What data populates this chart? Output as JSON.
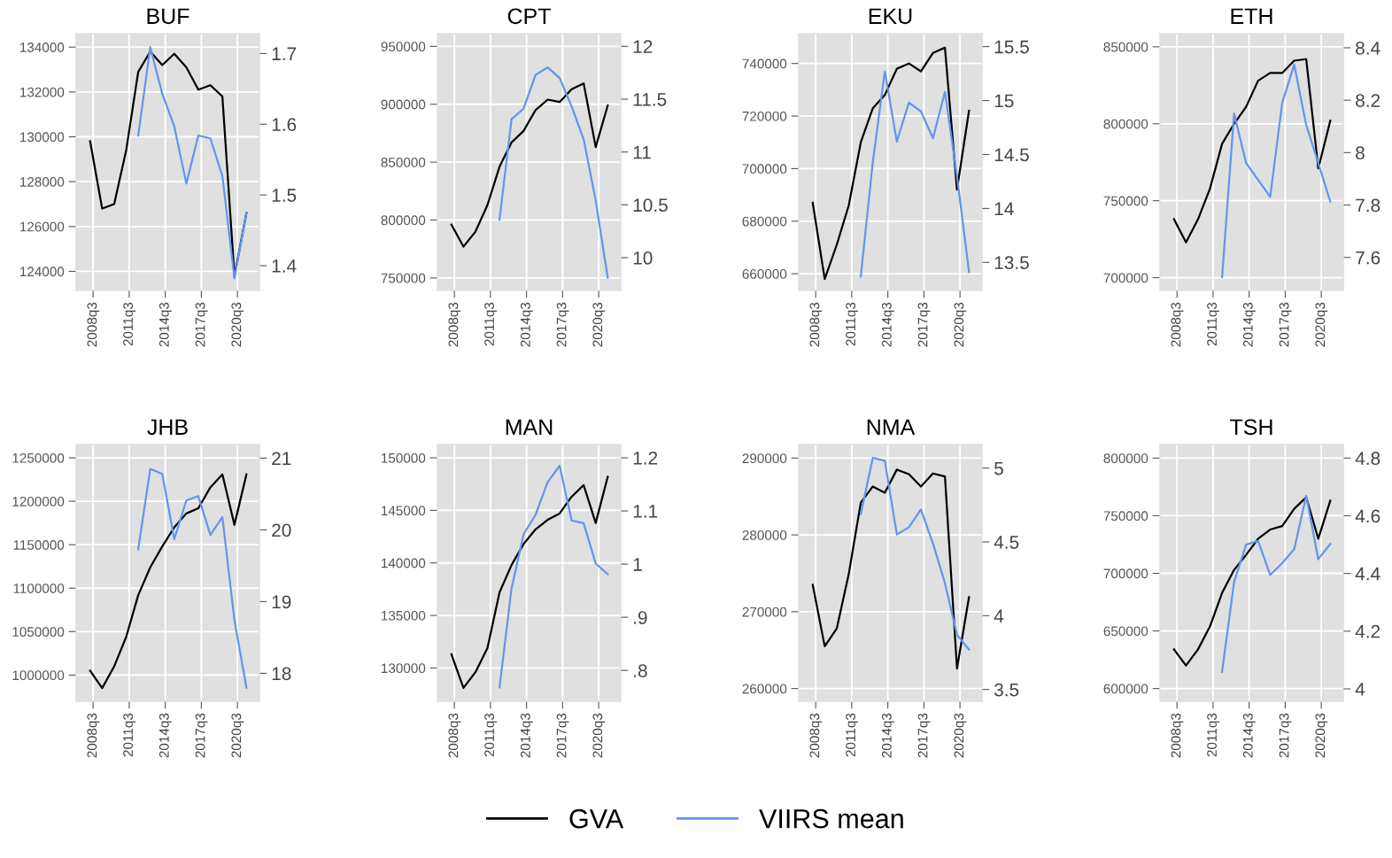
{
  "chart_data": [
    {
      "type": "line",
      "title": "BUF",
      "xlim": [
        "2007-02-01",
        "2022-05-01"
      ],
      "xticks": [
        {
          "value": "2008-07-01",
          "label": "2008q3"
        },
        {
          "value": "2011-07-01",
          "label": "2011q3"
        },
        {
          "value": "2014-07-01",
          "label": "2014q3"
        },
        {
          "value": "2017-07-01",
          "label": "2017q3"
        },
        {
          "value": "2020-07-01",
          "label": "2020q3"
        }
      ],
      "ylim": [
        123150,
        134600
      ],
      "yticks": [
        124000,
        126000,
        128000,
        130000,
        132000,
        134000
      ],
      "y2lim": [
        1.365,
        1.728
      ],
      "y2ticks": [
        1.4,
        1.5,
        1.6,
        1.7
      ],
      "grid": true,
      "legend": "bottom",
      "series": [
        {
          "name": "GVA",
          "color": "#000000",
          "x": [
            "2008-04-01",
            "2009-04-01",
            "2010-04-01",
            "2011-04-01",
            "2012-04-01",
            "2013-04-01",
            "2014-04-01",
            "2015-04-01",
            "2016-04-01",
            "2017-04-01",
            "2018-04-01",
            "2019-04-01",
            "2020-04-01",
            "2021-04-01"
          ],
          "values": [
            129800,
            126800,
            127000,
            129400,
            132900,
            133800,
            133200,
            133700,
            133100,
            132100,
            132300,
            131800,
            123800,
            126600
          ]
        },
        {
          "name": "VIIRS mean",
          "color": "#6495ed",
          "axis": "y2",
          "x": [
            "2012-04-01",
            "2013-04-01",
            "2014-04-01",
            "2015-04-01",
            "2016-04-01",
            "2017-04-01",
            "2018-04-01",
            "2019-04-01",
            "2020-04-01",
            "2021-04-01"
          ],
          "values": [
            1.584,
            1.709,
            1.643,
            1.597,
            1.516,
            1.584,
            1.58,
            1.527,
            1.382,
            1.475
          ]
        }
      ]
    },
    {
      "type": "line",
      "title": "CPT",
      "xlim": [
        "2007-02-01",
        "2022-05-01"
      ],
      "xticks": [
        {
          "value": "2008-07-01",
          "label": "2008q3"
        },
        {
          "value": "2011-07-01",
          "label": "2011q3"
        },
        {
          "value": "2014-07-01",
          "label": "2014q3"
        },
        {
          "value": "2017-07-01",
          "label": "2017q3"
        },
        {
          "value": "2020-07-01",
          "label": "2020q3"
        }
      ],
      "ylim": [
        739200,
        961000
      ],
      "yticks": [
        750000,
        800000,
        850000,
        900000,
        950000
      ],
      "y2lim": [
        9.69,
        12.12
      ],
      "y2ticks": [
        10,
        10.5,
        11,
        11.5,
        12
      ],
      "grid": true,
      "series": [
        {
          "color": "#000000",
          "x": [
            "2008-04-01",
            "2009-04-01",
            "2010-04-01",
            "2011-04-01",
            "2012-04-01",
            "2013-04-01",
            "2014-04-01",
            "2015-04-01",
            "2016-04-01",
            "2017-04-01",
            "2018-04-01",
            "2019-04-01",
            "2020-04-01",
            "2021-04-01"
          ],
          "values": [
            796000,
            777000,
            790000,
            813000,
            846000,
            867000,
            877000,
            895000,
            904000,
            902000,
            913000,
            918000,
            863000,
            899000
          ]
        },
        {
          "color": "#6495ed",
          "axis": "y2",
          "x": [
            "2012-04-01",
            "2013-04-01",
            "2014-04-01",
            "2015-04-01",
            "2016-04-01",
            "2017-04-01",
            "2018-04-01",
            "2019-04-01",
            "2020-04-01",
            "2021-04-01"
          ],
          "values": [
            10.36,
            11.31,
            11.41,
            11.73,
            11.8,
            11.7,
            11.43,
            11.12,
            10.54,
            9.81
          ]
        }
      ]
    },
    {
      "type": "line",
      "title": "EKU",
      "xlim": [
        "2007-02-01",
        "2022-05-01"
      ],
      "xticks": [
        {
          "value": "2008-07-01",
          "label": "2008q3"
        },
        {
          "value": "2011-07-01",
          "label": "2011q3"
        },
        {
          "value": "2014-07-01",
          "label": "2014q3"
        },
        {
          "value": "2017-07-01",
          "label": "2017q3"
        },
        {
          "value": "2020-07-01",
          "label": "2020q3"
        }
      ],
      "ylim": [
        653650,
        751350
      ],
      "yticks": [
        660000,
        680000,
        700000,
        720000,
        740000
      ],
      "y2lim": [
        13.24,
        15.62
      ],
      "y2ticks": [
        13.5,
        14,
        14.5,
        15,
        15.5
      ],
      "grid": true,
      "series": [
        {
          "color": "#000000",
          "x": [
            "2008-04-01",
            "2009-04-01",
            "2010-04-01",
            "2011-04-01",
            "2012-04-01",
            "2013-04-01",
            "2014-04-01",
            "2015-04-01",
            "2016-04-01",
            "2017-04-01",
            "2018-04-01",
            "2019-04-01",
            "2020-04-01",
            "2021-04-01"
          ],
          "values": [
            687000,
            658000,
            671000,
            686000,
            710000,
            723000,
            728000,
            738000,
            740000,
            737000,
            744000,
            746000,
            692000,
            722000
          ]
        },
        {
          "color": "#6495ed",
          "axis": "y2",
          "x": [
            "2012-04-01",
            "2013-04-01",
            "2014-04-01",
            "2015-04-01",
            "2016-04-01",
            "2017-04-01",
            "2018-04-01",
            "2019-04-01",
            "2020-04-01",
            "2021-04-01"
          ],
          "values": [
            13.37,
            14.43,
            15.27,
            14.62,
            14.98,
            14.9,
            14.65,
            15.08,
            14.3,
            13.41
          ]
        }
      ]
    },
    {
      "type": "line",
      "title": "ETH",
      "xlim": [
        "2007-02-01",
        "2022-05-01"
      ],
      "xticks": [
        {
          "value": "2008-07-01",
          "label": "2008q3"
        },
        {
          "value": "2011-07-01",
          "label": "2011q3"
        },
        {
          "value": "2014-07-01",
          "label": "2014q3"
        },
        {
          "value": "2017-07-01",
          "label": "2017q3"
        },
        {
          "value": "2020-07-01",
          "label": "2020q3"
        }
      ],
      "ylim": [
        691730,
        858550
      ],
      "yticks": [
        700000,
        750000,
        800000,
        850000
      ],
      "y2lim": [
        7.474,
        8.454
      ],
      "y2ticks": [
        7.6,
        7.8,
        8,
        8.2,
        8.4
      ],
      "grid": true,
      "series": [
        {
          "color": "#000000",
          "x": [
            "2008-04-01",
            "2009-04-01",
            "2010-04-01",
            "2011-04-01",
            "2012-04-01",
            "2013-04-01",
            "2014-04-01",
            "2015-04-01",
            "2016-04-01",
            "2017-04-01",
            "2018-04-01",
            "2019-04-01",
            "2020-04-01",
            "2021-04-01"
          ],
          "values": [
            738000,
            723000,
            738000,
            758000,
            787000,
            800000,
            811000,
            828000,
            833000,
            833000,
            841000,
            842000,
            771000,
            802000
          ]
        },
        {
          "color": "#6495ed",
          "axis": "y2",
          "x": [
            "2012-04-01",
            "2013-04-01",
            "2014-04-01",
            "2015-04-01",
            "2016-04-01",
            "2017-04-01",
            "2018-04-01",
            "2019-04-01",
            "2020-04-01",
            "2021-04-01"
          ],
          "values": [
            7.525,
            8.149,
            7.96,
            7.896,
            7.831,
            8.189,
            8.336,
            8.105,
            7.96,
            7.813
          ]
        }
      ]
    },
    {
      "type": "line",
      "title": "JHB",
      "xlim": [
        "2007-02-01",
        "2022-05-01"
      ],
      "xticks": [
        {
          "value": "2008-07-01",
          "label": "2008q3"
        },
        {
          "value": "2011-07-01",
          "label": "2011q3"
        },
        {
          "value": "2014-07-01",
          "label": "2014q3"
        },
        {
          "value": "2017-07-01",
          "label": "2017q3"
        },
        {
          "value": "2020-07-01",
          "label": "2020q3"
        }
      ],
      "ylim": [
        969840,
        1265340
      ],
      "yticks": [
        1000000,
        1050000,
        1100000,
        1150000,
        1200000,
        1250000
      ],
      "y2lim": [
        17.61,
        21.19
      ],
      "y2ticks": [
        18,
        19,
        20,
        21
      ],
      "grid": true,
      "series": [
        {
          "color": "#000000",
          "x": [
            "2008-04-01",
            "2009-04-01",
            "2010-04-01",
            "2011-04-01",
            "2012-04-01",
            "2013-04-01",
            "2014-04-01",
            "2015-04-01",
            "2016-04-01",
            "2017-04-01",
            "2018-04-01",
            "2019-04-01",
            "2020-04-01",
            "2021-04-01"
          ],
          "values": [
            1005000,
            985000,
            1010000,
            1044000,
            1092000,
            1124000,
            1148000,
            1170000,
            1186000,
            1192000,
            1216000,
            1231000,
            1173000,
            1231000
          ]
        },
        {
          "color": "#6495ed",
          "axis": "y2",
          "x": [
            "2012-04-01",
            "2013-04-01",
            "2014-04-01",
            "2015-04-01",
            "2016-04-01",
            "2017-04-01",
            "2018-04-01",
            "2019-04-01",
            "2020-04-01",
            "2021-04-01"
          ],
          "values": [
            19.73,
            20.85,
            20.78,
            19.87,
            20.41,
            20.47,
            19.93,
            20.18,
            18.74,
            17.8
          ]
        }
      ]
    },
    {
      "type": "line",
      "title": "MAN",
      "xlim": [
        "2007-02-01",
        "2022-05-01"
      ],
      "xticks": [
        {
          "value": "2008-07-01",
          "label": "2008q3"
        },
        {
          "value": "2011-07-01",
          "label": "2011q3"
        },
        {
          "value": "2014-07-01",
          "label": "2014q3"
        },
        {
          "value": "2017-07-01",
          "label": "2017q3"
        },
        {
          "value": "2020-07-01",
          "label": "2020q3"
        }
      ],
      "ylim": [
        126830,
        151270
      ],
      "yticks": [
        130000,
        135000,
        140000,
        145000,
        150000
      ],
      "y2lim": [
        0.742,
        1.225
      ],
      "y2ticks": [
        {
          "value": 0.8,
          "label": ".8"
        },
        {
          "value": 0.9,
          "label": ".9"
        },
        1,
        1.1,
        1.2
      ],
      "grid": true,
      "series": [
        {
          "color": "#000000",
          "x": [
            "2008-04-01",
            "2009-04-01",
            "2010-04-01",
            "2011-04-01",
            "2012-04-01",
            "2013-04-01",
            "2014-04-01",
            "2015-04-01",
            "2016-04-01",
            "2017-04-01",
            "2018-04-01",
            "2019-04-01",
            "2020-04-01",
            "2021-04-01"
          ],
          "values": [
            131300,
            128100,
            129600,
            131900,
            137200,
            139800,
            141800,
            143200,
            144100,
            144700,
            146300,
            147400,
            143800,
            148200
          ]
        },
        {
          "color": "#6495ed",
          "axis": "y2",
          "x": [
            "2012-04-01",
            "2013-04-01",
            "2014-04-01",
            "2015-04-01",
            "2016-04-01",
            "2017-04-01",
            "2018-04-01",
            "2019-04-01",
            "2020-04-01",
            "2021-04-01"
          ],
          "values": [
            0.768,
            0.954,
            1.056,
            1.093,
            1.154,
            1.185,
            1.082,
            1.077,
            1.001,
            0.981
          ]
        }
      ]
    },
    {
      "type": "line",
      "title": "NMA",
      "xlim": [
        "2007-02-01",
        "2022-05-01"
      ],
      "xticks": [
        {
          "value": "2008-07-01",
          "label": "2008q3"
        },
        {
          "value": "2011-07-01",
          "label": "2011q3"
        },
        {
          "value": "2014-07-01",
          "label": "2014q3"
        },
        {
          "value": "2017-07-01",
          "label": "2017q3"
        },
        {
          "value": "2020-07-01",
          "label": "2020q3"
        }
      ],
      "ylim": [
        258340,
        291770
      ],
      "yticks": [
        260000,
        270000,
        280000,
        290000
      ],
      "y2lim": [
        3.42,
        5.16
      ],
      "y2ticks": [
        3.5,
        4,
        4.5,
        5
      ],
      "grid": true,
      "series": [
        {
          "color": "#000000",
          "x": [
            "2008-04-01",
            "2009-04-01",
            "2010-04-01",
            "2011-04-01",
            "2012-04-01",
            "2013-04-01",
            "2014-04-01",
            "2015-04-01",
            "2016-04-01",
            "2017-04-01",
            "2018-04-01",
            "2019-04-01",
            "2020-04-01",
            "2021-04-01"
          ],
          "values": [
            273500,
            265500,
            267800,
            274900,
            284200,
            286300,
            285500,
            288500,
            287900,
            286300,
            288000,
            287600,
            262600,
            271900
          ]
        },
        {
          "color": "#6495ed",
          "axis": "y2",
          "x": [
            "2012-04-01",
            "2013-04-01",
            "2014-04-01",
            "2015-04-01",
            "2016-04-01",
            "2017-04-01",
            "2018-04-01",
            "2019-04-01",
            "2020-04-01",
            "2021-04-01"
          ],
          "values": [
            4.69,
            5.07,
            5.05,
            4.55,
            4.6,
            4.72,
            4.49,
            4.22,
            3.87,
            3.77
          ]
        }
      ]
    },
    {
      "type": "line",
      "title": "TSH",
      "xlim": [
        "2007-02-01",
        "2022-05-01"
      ],
      "xticks": [
        {
          "value": "2008-07-01",
          "label": "2008q3"
        },
        {
          "value": "2011-07-01",
          "label": "2011q3"
        },
        {
          "value": "2014-07-01",
          "label": "2014q3"
        },
        {
          "value": "2017-07-01",
          "label": "2017q3"
        },
        {
          "value": "2020-07-01",
          "label": "2020q3"
        }
      ],
      "ylim": [
        588950,
        811810
      ],
      "yticks": [
        600000,
        650000,
        700000,
        750000,
        800000
      ],
      "y2lim": [
        3.957,
        4.847
      ],
      "y2ticks": [
        4,
        4.2,
        4.4,
        4.6,
        4.8
      ],
      "grid": true,
      "series": [
        {
          "color": "#000000",
          "x": [
            "2008-04-01",
            "2009-04-01",
            "2010-04-01",
            "2011-04-01",
            "2012-04-01",
            "2013-04-01",
            "2014-04-01",
            "2015-04-01",
            "2016-04-01",
            "2017-04-01",
            "2018-04-01",
            "2019-04-01",
            "2020-04-01",
            "2021-04-01"
          ],
          "values": [
            634000,
            620000,
            634000,
            654000,
            683000,
            703000,
            716000,
            730000,
            738000,
            741000,
            756000,
            766000,
            730000,
            763000
          ]
        },
        {
          "color": "#6495ed",
          "axis": "y2",
          "x": [
            "2012-04-01",
            "2013-04-01",
            "2014-04-01",
            "2015-04-01",
            "2016-04-01",
            "2017-04-01",
            "2018-04-01",
            "2019-04-01",
            "2020-04-01",
            "2021-04-01"
          ],
          "values": [
            4.059,
            4.371,
            4.5,
            4.513,
            4.395,
            4.436,
            4.484,
            4.669,
            4.449,
            4.502
          ]
        }
      ]
    }
  ]
}
